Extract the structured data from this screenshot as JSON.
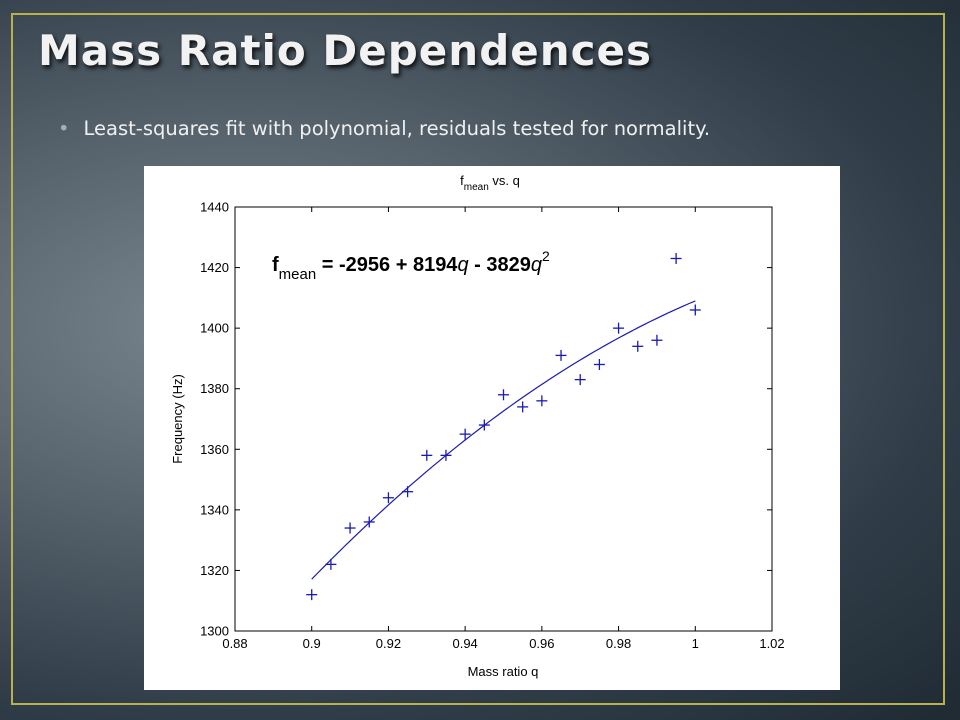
{
  "slide": {
    "title": "Mass Ratio Dependences",
    "bullet": "Least-squares fit with polynomial, residuals tested for normality."
  },
  "colors": {
    "border": "#b9b24a",
    "series": "#1a1ab4",
    "title_text": "#f2f2f2"
  },
  "chart_data": {
    "type": "scatter",
    "title": {
      "main": "f",
      "sub": "mean",
      "rest": " vs. q"
    },
    "xlabel": "Mass ratio q",
    "ylabel": "Frequency (Hz)",
    "xlim": [
      0.88,
      1.02
    ],
    "ylim": [
      1300,
      1440
    ],
    "xticks": [
      "0.88",
      "0.9",
      "0.92",
      "0.94",
      "0.96",
      "0.98",
      "1",
      "1.02"
    ],
    "yticks": [
      "1300",
      "1320",
      "1340",
      "1360",
      "1380",
      "1400",
      "1420",
      "1440"
    ],
    "grid": false,
    "equation": {
      "lhs_main": "f",
      "lhs_sub": "mean",
      "rhs_a": " = -2956 + 8194",
      "q1": "q",
      "rhs_b": " - 3829",
      "q2": "q",
      "exp": "2"
    },
    "fit": {
      "intercept": -2956,
      "linear": 8194,
      "quadratic": -3829,
      "x_range": [
        0.9,
        1.0
      ]
    },
    "series": [
      {
        "marker": "+",
        "x": [
          0.9,
          0.905,
          0.91,
          0.915,
          0.92,
          0.925,
          0.93,
          0.935,
          0.94,
          0.945,
          0.95,
          0.955,
          0.96,
          0.965,
          0.97,
          0.975,
          0.98,
          0.985,
          0.99,
          0.995,
          1.0
        ],
        "y": [
          1312,
          1322,
          1334,
          1336,
          1344,
          1346,
          1358,
          1358,
          1365,
          1368,
          1378,
          1374,
          1376,
          1391,
          1383,
          1388,
          1400,
          1394,
          1396,
          1423,
          1406
        ]
      }
    ]
  }
}
